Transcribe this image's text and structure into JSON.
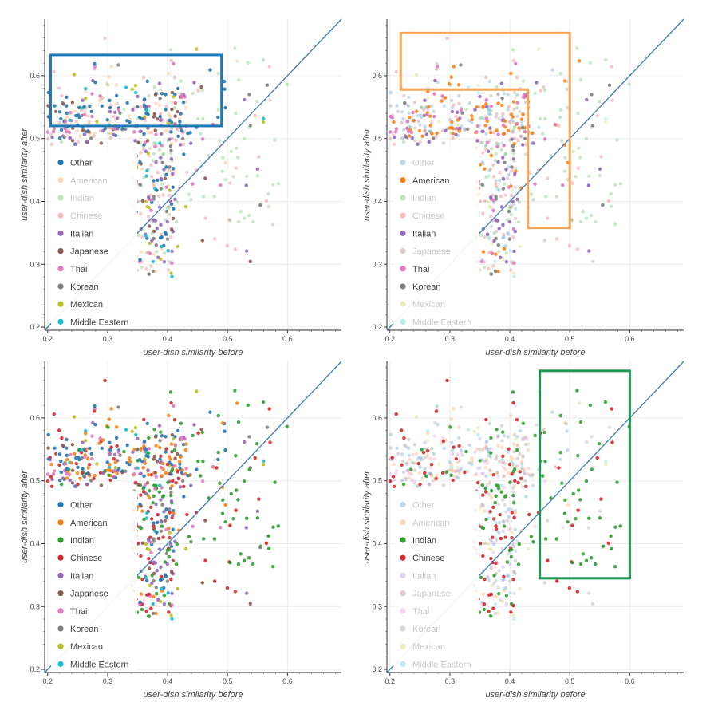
{
  "chart_data": [
    {
      "type": "scatter",
      "panel": "top-left",
      "xlabel": "user-dish similarity before",
      "ylabel": "user-dish similarity after",
      "xlim": [
        0.195,
        0.69
      ],
      "ylim": [
        0.195,
        0.69
      ],
      "xticks": [
        "0.2",
        "0.3",
        "0.4",
        "0.5",
        "0.6"
      ],
      "yticks": [
        "0.2",
        "0.3",
        "0.4",
        "0.5",
        "0.6"
      ],
      "diagonal": [
        [
          0.195,
          0.195
        ],
        [
          0.69,
          0.69
        ]
      ],
      "legend_placement": "bottom-left",
      "legend": [
        "Other",
        "American",
        "Indian",
        "Chinese",
        "Italian",
        "Japanese",
        "Thai",
        "Korean",
        "Mexican",
        "Middle Eastern"
      ],
      "highlighted": [
        "Other",
        "Italian",
        "Japanese",
        "Thai",
        "Korean",
        "Mexican",
        "Middle Eastern"
      ],
      "highlight_box": {
        "color": "#1f77b4",
        "x": [
          0.205,
          0.49
        ],
        "y": [
          0.52,
          0.633
        ]
      }
    },
    {
      "type": "scatter",
      "panel": "top-right",
      "xlabel": "user-dish similarity before",
      "ylabel": "user-dish similarity after",
      "xlim": [
        0.195,
        0.69
      ],
      "ylim": [
        0.195,
        0.69
      ],
      "xticks": [
        "0.2",
        "0.3",
        "0.4",
        "0.5",
        "0.6"
      ],
      "yticks": [
        "0.2",
        "0.3",
        "0.4",
        "0.5",
        "0.6"
      ],
      "diagonal": [
        [
          0.195,
          0.195
        ],
        [
          0.69,
          0.69
        ]
      ],
      "legend_placement": "bottom-left",
      "legend": [
        "Other",
        "American",
        "Indian",
        "Chinese",
        "Italian",
        "Japanese",
        "Thai",
        "Korean",
        "Mexican",
        "Middle Eastern"
      ],
      "highlighted": [
        "American",
        "Italian",
        "Thai",
        "Korean"
      ],
      "highlight_box": {
        "color": "#f5a85a",
        "polygon": [
          [
            0.218,
            0.668
          ],
          [
            0.5,
            0.668
          ],
          [
            0.5,
            0.358
          ],
          [
            0.43,
            0.358
          ],
          [
            0.43,
            0.578
          ],
          [
            0.218,
            0.578
          ]
        ]
      }
    },
    {
      "type": "scatter",
      "panel": "bottom-left",
      "xlabel": "user-dish similarity before",
      "ylabel": "user-dish similarity after",
      "xlim": [
        0.195,
        0.69
      ],
      "ylim": [
        0.195,
        0.69
      ],
      "xticks": [
        "0.2",
        "0.3",
        "0.4",
        "0.5",
        "0.6"
      ],
      "yticks": [
        "0.2",
        "0.3",
        "0.4",
        "0.5",
        "0.6"
      ],
      "diagonal": [
        [
          0.195,
          0.195
        ],
        [
          0.69,
          0.69
        ]
      ],
      "legend_placement": "bottom-left",
      "legend": [
        "Other",
        "American",
        "Indian",
        "Chinese",
        "Italian",
        "Japanese",
        "Thai",
        "Korean",
        "Mexican",
        "Middle Eastern"
      ],
      "highlighted": [
        "Other",
        "American",
        "Indian",
        "Chinese",
        "Italian",
        "Japanese",
        "Thai",
        "Korean",
        "Mexican",
        "Middle Eastern"
      ]
    },
    {
      "type": "scatter",
      "panel": "bottom-right",
      "xlabel": "user-dish similarity before",
      "ylabel": "user-dish similarity after",
      "xlim": [
        0.195,
        0.69
      ],
      "ylim": [
        0.195,
        0.69
      ],
      "xticks": [
        "0.2",
        "0.3",
        "0.4",
        "0.5",
        "0.6"
      ],
      "yticks": [
        "0.2",
        "0.3",
        "0.4",
        "0.5",
        "0.6"
      ],
      "diagonal": [
        [
          0.195,
          0.195
        ],
        [
          0.69,
          0.69
        ]
      ],
      "legend_placement": "bottom-left",
      "legend": [
        "Other",
        "American",
        "Indian",
        "Chinese",
        "Italian",
        "Japanese",
        "Thai",
        "Korean",
        "Mexican",
        "Middle Eastern"
      ],
      "highlighted": [
        "Indian",
        "Chinese"
      ],
      "highlight_box": {
        "color": "#1a9850",
        "x": [
          0.45,
          0.6
        ],
        "y": [
          0.345,
          0.675
        ]
      }
    }
  ],
  "series_colors": {
    "Other": "#1f77b4",
    "American": "#ff7f0e",
    "Indian": "#2ca02c",
    "Chinese": "#d62728",
    "Italian": "#9467bd",
    "Japanese": "#8c564b",
    "Thai": "#e377c2",
    "Korean": "#7f7f7f",
    "Mexican": "#bcbd22",
    "Middle Eastern": "#17becf"
  },
  "cuisine_distribution": {
    "Other": {
      "n": 95,
      "cluster": "top-band"
    },
    "American": {
      "n": 80,
      "cluster": "top-band"
    },
    "Indian": {
      "n": 95,
      "cluster": "right-spread"
    },
    "Chinese": {
      "n": 95,
      "cluster": "mixed"
    },
    "Italian": {
      "n": 60,
      "cluster": "mixed"
    },
    "Japanese": {
      "n": 35,
      "cluster": "mixed"
    },
    "Thai": {
      "n": 50,
      "cluster": "top-band"
    },
    "Korean": {
      "n": 30,
      "cluster": "mixed"
    },
    "Mexican": {
      "n": 25,
      "cluster": "mixed"
    },
    "Middle Eastern": {
      "n": 20,
      "cluster": "mixed"
    }
  }
}
